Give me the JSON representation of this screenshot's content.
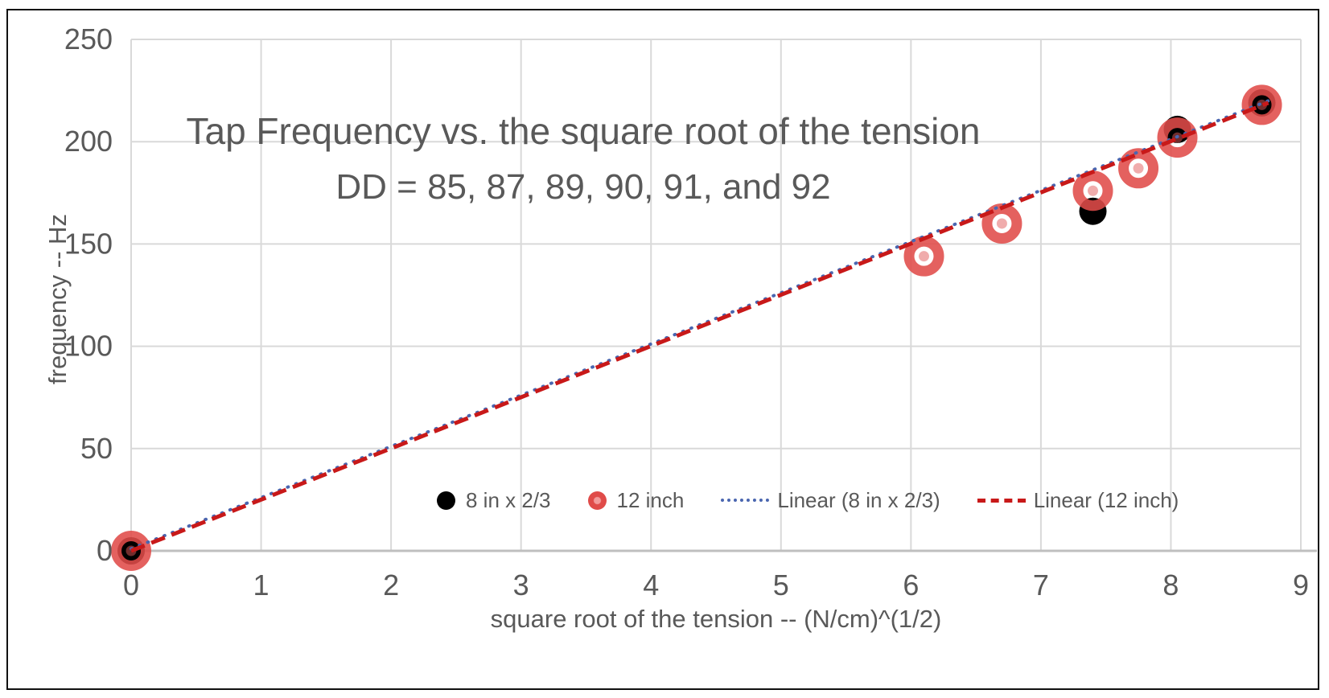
{
  "title": {
    "line1": "Tap Frequency vs. the square root of the tension",
    "line2": "DD = 85, 87, 89, 90, 91, and 92"
  },
  "axes": {
    "x": {
      "title": "square root of the tension -- (N/cm)^(1/2)"
    },
    "y": {
      "title": "frequency -- Hz"
    }
  },
  "legend": {
    "items": [
      {
        "label": "8 in x 2/3",
        "swatch": "black-filled-circle"
      },
      {
        "label": "12 inch",
        "swatch": "red-circle"
      },
      {
        "label": "Linear (8 in x 2/3)",
        "swatch": "blue-dotted-line"
      },
      {
        "label": "Linear (12 inch)",
        "swatch": "red-dashed-line"
      }
    ]
  },
  "colors": {
    "text_gray": "#595959",
    "gridline": "#D9D9D9",
    "axis_line": "#BFBFBF",
    "marker_black": "#000000",
    "marker_red": "#E04B49",
    "marker_red_center": "#E15A5A",
    "trend_blue": "#4A66B0",
    "trend_red": "#C81919",
    "frame_border": "#111111"
  },
  "chart_data": {
    "type": "scatter",
    "title": "Tap Frequency vs. the square root of the tension",
    "subtitle": "DD = 85, 87, 89, 90, 91, and 92",
    "xlabel": "square root of the tension -- (N/cm)^(1/2)",
    "ylabel": "frequency -- Hz",
    "xlim": [
      0,
      9
    ],
    "ylim": [
      0,
      250
    ],
    "x_ticks": [
      0,
      1,
      2,
      3,
      4,
      5,
      6,
      7,
      8,
      9
    ],
    "y_ticks": [
      0,
      50,
      100,
      150,
      200,
      250
    ],
    "grid": true,
    "legend_position": "inside-bottom-center",
    "series": [
      {
        "name": "8 in x 2/3",
        "marker": "filled-circle",
        "color": "#000000",
        "points": [
          [
            0,
            0
          ],
          [
            7.4,
            166
          ],
          [
            8.05,
            206
          ],
          [
            8.7,
            219
          ]
        ]
      },
      {
        "name": "12 inch",
        "marker": "ring",
        "color": "#E04B49",
        "points": [
          [
            0,
            0
          ],
          [
            6.1,
            144
          ],
          [
            6.7,
            160
          ],
          [
            7.4,
            176
          ],
          [
            7.75,
            187
          ],
          [
            8.05,
            202
          ],
          [
            8.7,
            218
          ]
        ]
      }
    ],
    "trendlines": [
      {
        "name": "Linear (8 in x 2/3)",
        "style": "dotted",
        "color": "#4A66B0",
        "from": [
          0,
          1
        ],
        "to": [
          8.75,
          220
        ]
      },
      {
        "name": "Linear (12 inch)",
        "style": "dashed",
        "color": "#C81919",
        "from": [
          0,
          0
        ],
        "to": [
          8.75,
          219
        ]
      }
    ]
  }
}
